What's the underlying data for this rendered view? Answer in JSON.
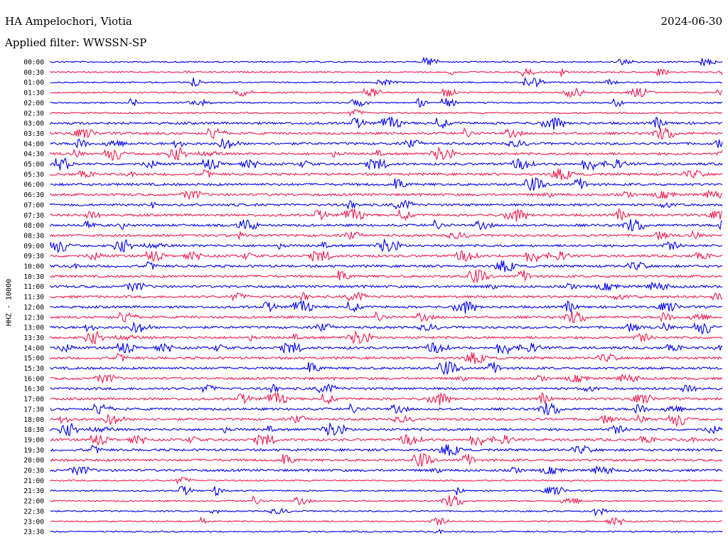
{
  "header": {
    "station": "HA Ampelochori, Viotia",
    "date": "2024-06-30",
    "filter": "Applied filter: WWSSN-SP"
  },
  "chart_data": {
    "type": "line",
    "title": "HA Ampelochori, Viotia",
    "subtitle": "Applied filter: WWSSN-SP",
    "ylabel": "HHZ - 10000",
    "xlabel": "",
    "row_labels": [
      "00:00",
      "00:30",
      "01:00",
      "01:30",
      "02:00",
      "02:30",
      "03:00",
      "03:30",
      "04:00",
      "04:30",
      "05:00",
      "05:30",
      "06:00",
      "06:30",
      "07:00",
      "07:30",
      "08:00",
      "08:30",
      "09:00",
      "09:30",
      "10:00",
      "10:30",
      "11:00",
      "11:30",
      "12:00",
      "12:30",
      "13:00",
      "13:30",
      "14:00",
      "15:00",
      "15:30",
      "16:00",
      "16:30",
      "17:00",
      "17:30",
      "18:00",
      "18:30",
      "19:00",
      "19:30",
      "20:00",
      "20:30",
      "21:00",
      "21:30",
      "22:00",
      "22:30",
      "23:00",
      "23:30"
    ],
    "colors": {
      "even_rows": "#0000ee",
      "odd_rows": "#ee1c4f"
    },
    "grid": false
  }
}
